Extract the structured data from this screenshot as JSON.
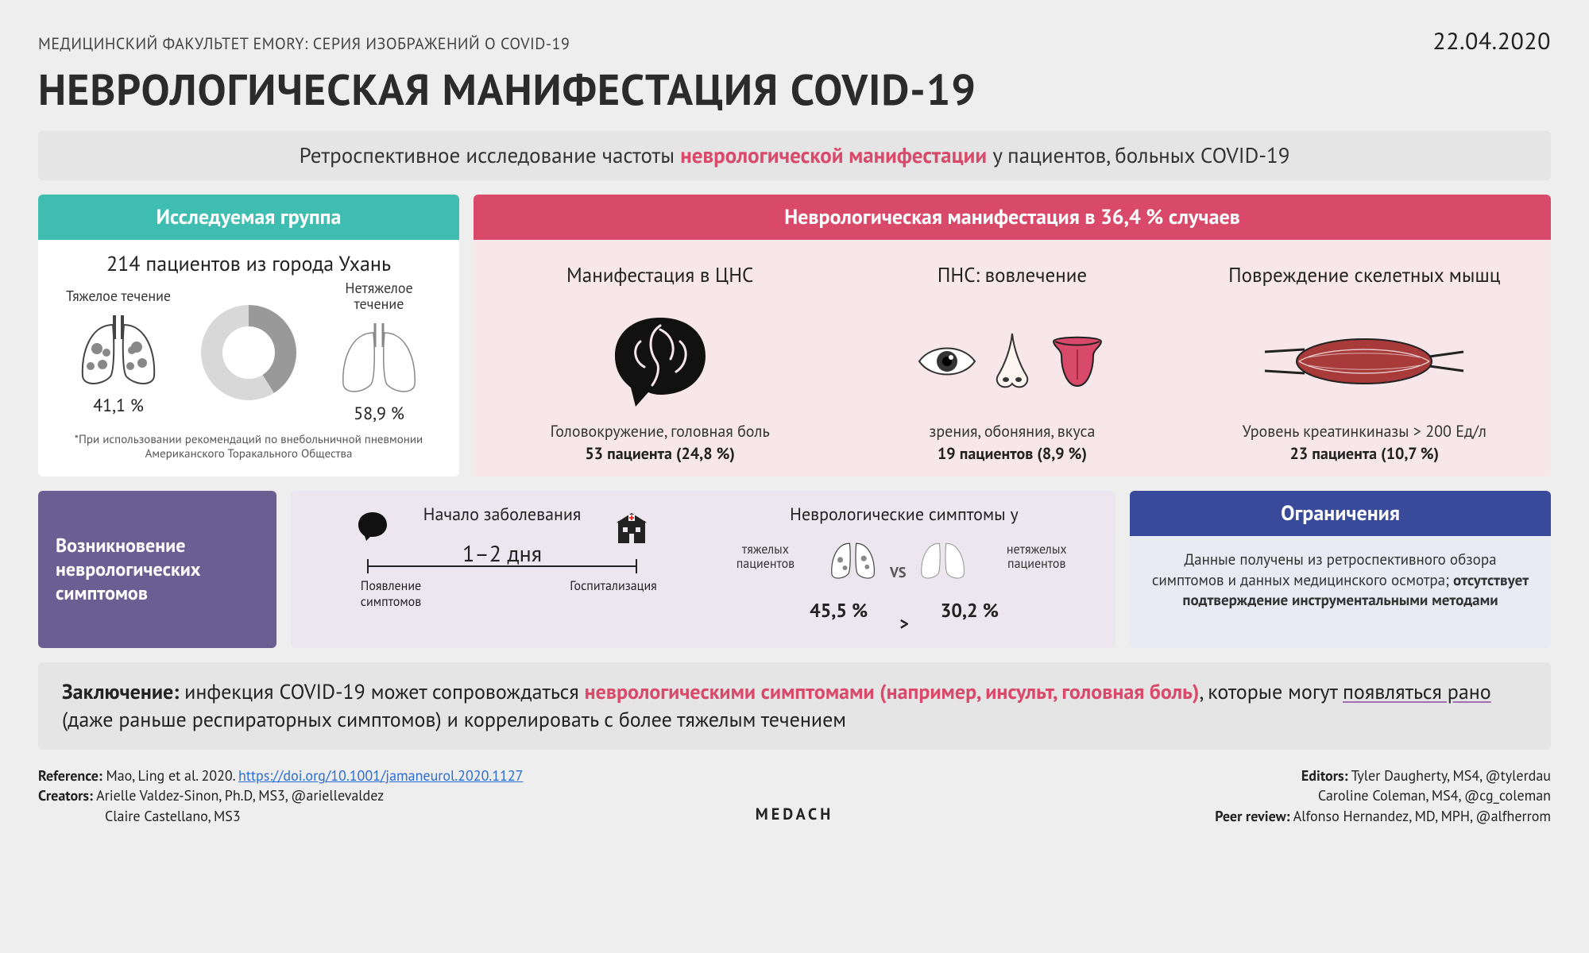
{
  "header": {
    "series": "МЕДИЦИНСКИЙ ФАКУЛЬТЕТ EMORY: СЕРИЯ ИЗОБРАЖЕНИЙ О COVID-19",
    "date": "22.04.2020",
    "title": "НЕВРОЛОГИЧЕСКАЯ МАНИФЕСТАЦИЯ COVID-19"
  },
  "subtitle": {
    "pre": "Ретроспективное исследование частоты ",
    "highlight": "неврологической манифестации",
    "post": " у пациентов, больных COVID-19"
  },
  "colors": {
    "teal": "#3fbdb0",
    "pink": "#d94a6a",
    "purple": "#6a5f93",
    "blue": "#3a4a9a",
    "page_bg": "#eeeeee",
    "pink_body": "#f7e7ea",
    "purple_body": "#ece6ef",
    "blue_body": "#e8eaf4",
    "text": "#222222"
  },
  "cohort": {
    "head": "Исследуемая группа",
    "title": "214 пациентов из города Ухань",
    "severe_label": "Тяжелое течение",
    "nonsevere_label": "Нетяжелое течение",
    "severe_pct": "41,1 %",
    "nonsevere_pct": "58,9 %",
    "donut": {
      "severe": 41.1,
      "nonsevere": 58.9,
      "severe_color": "#999999",
      "nonsevere_color": "#d8d8d8",
      "hole_color": "#ffffff"
    },
    "footnote": "*При использовании рекомендаций по внебольничной пневмонии Американского Торакального Общества"
  },
  "manifest": {
    "head": "Неврологическая манифестация в 36,4 % случаев",
    "cols": [
      {
        "title": "Манифестация в ЦНС",
        "desc": "Головокружение, головная боль",
        "stat": "53 пациента (24,8 %)"
      },
      {
        "title": "ПНС: вовлечение",
        "desc": "зрения, обоняния, вкуса",
        "stat": "19 пациентов (8,9 %)"
      },
      {
        "title": "Повреждение скелетных мышц",
        "desc": "Уровень креатинкиназы > 200 Ед/л",
        "stat": "23 пациента (10,7 %)"
      }
    ]
  },
  "onset": {
    "purple_title": "Возникновение неврологических симптомов",
    "mid_title_left": "Начало заболевания",
    "days": "1–2 дня",
    "tl_left": "Появление симптомов",
    "tl_right": "Госпитализация",
    "mid_title_right": "Неврологические симптомы у",
    "severe_lbl": "тяжелых пациентов",
    "nonsevere_lbl": "нетяжелых пациентов",
    "severe_pct": "45,5 %",
    "nonsevere_pct": "30,2 %",
    "vs": "VS",
    "gt": ">"
  },
  "limits": {
    "head": "Ограничения",
    "body_pre": "Данные получены из ретроспективного обзора симптомов и данных медицинского осмотра; ",
    "body_bold": "отсутствует подтверждение инструментальными методами"
  },
  "conclusion": {
    "lead": "Заключение:",
    "t1": " инфекция COVID-19 может сопровождаться ",
    "hl": "неврологическими симптомами",
    "t2": " (например, инсульт, головная боль)",
    "t3": ", которые могут ",
    "ul": "появляться рано",
    "t4": " (даже раньше респираторных симптомов) и коррелировать с более тяжелым течением"
  },
  "footer": {
    "reference_label": "Reference:",
    "reference_text": " Mao, Ling et al. 2020.  ",
    "reference_url": "https://doi.org/10.1001/jamaneurol.2020.1127",
    "creators_label": "Creators:",
    "creators_1": " Arielle Valdez-Sinon, Ph.D, MS3, @ariellevaldez",
    "creators_2": "Claire Castellano, MS3",
    "editors_label": "Editors:",
    "editors_1": " Tyler Daugherty, MS4, @tylerdau",
    "editors_2": "Caroline Coleman, MS4, @cg_coleman",
    "peer_label": "Peer review:",
    "peer_text": " Alfonso Hernandez, MD, MPH, @alfherrom",
    "brand": "MEDACH"
  }
}
